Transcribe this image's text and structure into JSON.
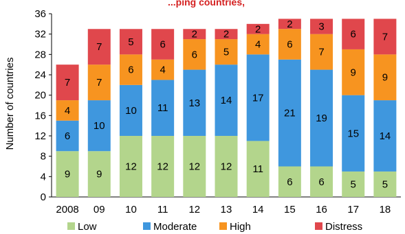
{
  "chart_data": {
    "type": "bar",
    "stacked": true,
    "title": "",
    "xlabel": "",
    "ylabel": "Number of countries",
    "ylim": [
      0,
      36
    ],
    "yticks": [
      0,
      4,
      8,
      12,
      16,
      20,
      24,
      28,
      32,
      36
    ],
    "grid": false,
    "legend_position": "bottom",
    "categories": [
      "2008",
      "09",
      "10",
      "11",
      "12",
      "13",
      "14",
      "15",
      "16",
      "17",
      "18"
    ],
    "series": [
      {
        "name": "Low",
        "color": "#b3d58c",
        "label_color": "#000000",
        "values": [
          9,
          9,
          12,
          12,
          12,
          12,
          11,
          6,
          6,
          5,
          5
        ]
      },
      {
        "name": "Moderate",
        "color": "#3f97de",
        "label_color": "#000000",
        "values": [
          6,
          10,
          10,
          11,
          13,
          14,
          17,
          21,
          19,
          15,
          14
        ]
      },
      {
        "name": "High",
        "color": "#f79420",
        "label_color": "#000000",
        "values": [
          4,
          7,
          6,
          4,
          6,
          5,
          4,
          6,
          7,
          9,
          9
        ]
      },
      {
        "name": "Distress",
        "color": "#e0474c",
        "label_color": "#000000",
        "values": [
          7,
          7,
          5,
          6,
          2,
          2,
          2,
          2,
          3,
          6,
          7
        ]
      }
    ]
  },
  "clipped_title": "...ping countries,"
}
